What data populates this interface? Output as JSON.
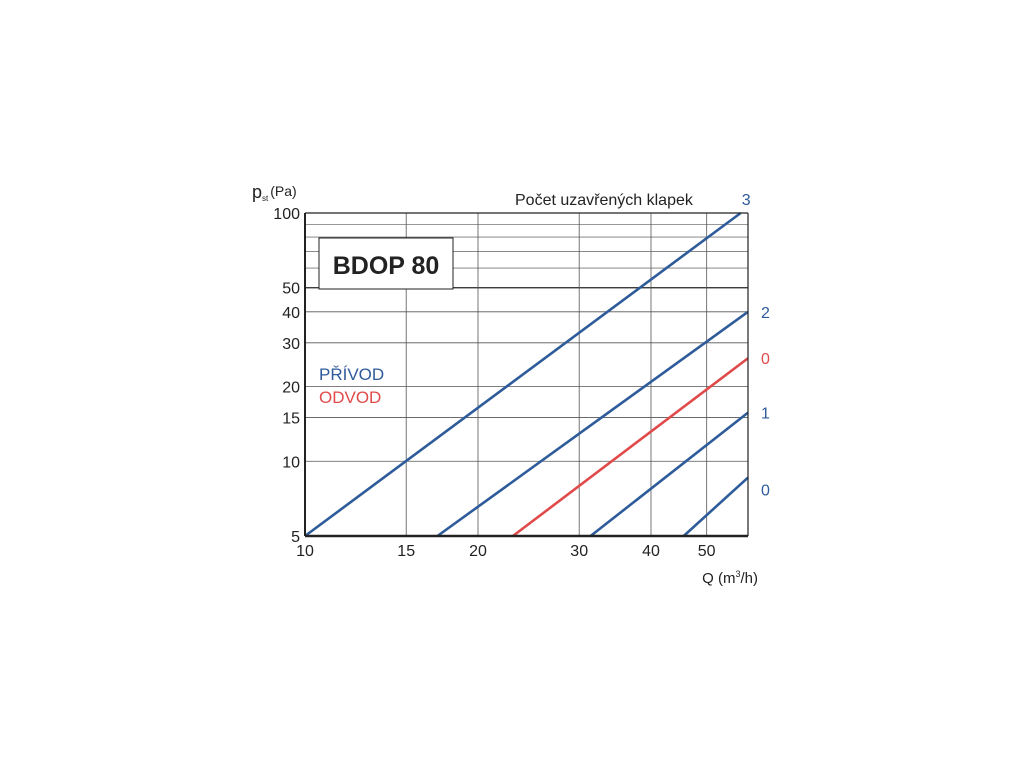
{
  "chart_data": {
    "type": "line",
    "title": "BDOP 80",
    "xlabel": "Q (m³/h)",
    "xlabel_main": "Q (m",
    "xlabel_sup": "3",
    "xlabel_tail": "/h)",
    "ylabel_main": "p",
    "ylabel_sub": "st",
    "ylabel_unit": "(Pa)",
    "x_scale": "log",
    "y_scale": "log",
    "xlim": [
      10,
      59
    ],
    "ylim": [
      5,
      100
    ],
    "x_ticks": [
      10,
      15,
      20,
      30,
      40,
      50
    ],
    "y_ticks": [
      5,
      10,
      15,
      20,
      30,
      40,
      50,
      100
    ],
    "y_minor_grid": [
      60,
      70,
      80,
      90
    ],
    "grid": true,
    "legend_title": "Počet uzavřených klapek",
    "legend": [
      {
        "label": "PŘÍVOD",
        "color": "#2e5b9a"
      },
      {
        "label": "ODVOD",
        "color": "#e04a4a"
      }
    ],
    "series": [
      {
        "name": "3",
        "group": "PŘÍVOD",
        "color": "#2e5b9a",
        "x": [
          10,
          57.3
        ],
        "y": [
          5,
          100
        ]
      },
      {
        "name": "2",
        "group": "PŘÍVOD",
        "color": "#2e5b9a",
        "x": [
          17.0,
          59
        ],
        "y": [
          5,
          40
        ]
      },
      {
        "name": "0",
        "group": "ODVOD",
        "color": "#e04a4a",
        "x": [
          23.0,
          59
        ],
        "y": [
          5,
          26
        ]
      },
      {
        "name": "1",
        "group": "PŘÍVOD",
        "color": "#2e5b9a",
        "x": [
          31.4,
          59
        ],
        "y": [
          5,
          15.7
        ]
      },
      {
        "name": "0",
        "group": "PŘÍVOD",
        "color": "#2e5b9a",
        "x": [
          45.6,
          59
        ],
        "y": [
          5,
          8.6
        ]
      }
    ]
  }
}
